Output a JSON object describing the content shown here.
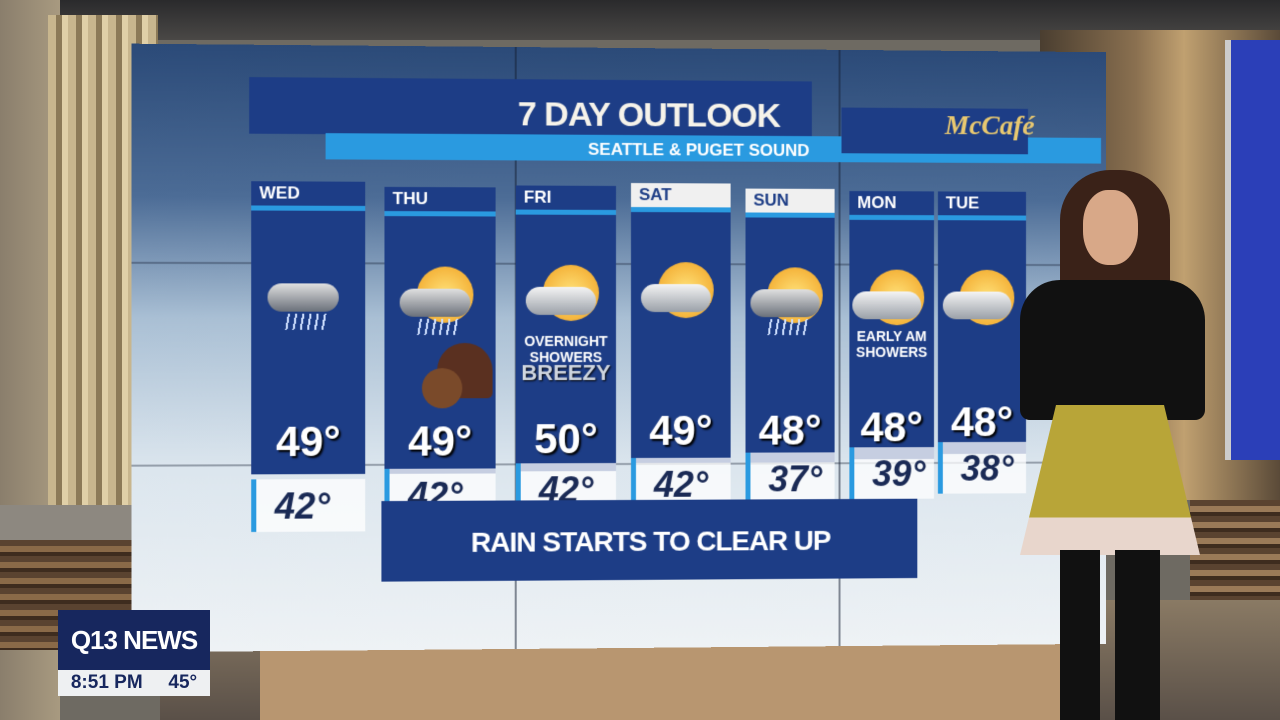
{
  "graphic": {
    "title": "7 DAY OUTLOOK",
    "subtitle": "SEATTLE & PUGET SOUND",
    "sponsor": "McCafé",
    "banner": "RAIN STARTS TO CLEAR UP",
    "colors": {
      "navy": "#1d3d86",
      "accent": "#2a9ae0"
    }
  },
  "days": [
    {
      "day": "WED",
      "high": "49°",
      "low": "42°",
      "icon": "cloud-rain-icon",
      "note": ""
    },
    {
      "day": "THU",
      "high": "49°",
      "low": "42°",
      "icon": "sun-cloud-rain-icon",
      "note": ""
    },
    {
      "day": "FRI",
      "high": "50°",
      "low": "42°",
      "icon": "sun-cloud-icon",
      "note": "OVERNIGHT SHOWERS",
      "note2": "BREEZY"
    },
    {
      "day": "SAT",
      "high": "49°",
      "low": "42°",
      "icon": "sun-cloud-icon",
      "note": ""
    },
    {
      "day": "SUN",
      "high": "48°",
      "low": "37°",
      "icon": "sun-cloud-rain-icon",
      "note": ""
    },
    {
      "day": "MON",
      "high": "48°",
      "low": "39°",
      "icon": "sun-cloud-icon",
      "note": "EARLY AM SHOWERS"
    },
    {
      "day": "TUE",
      "high": "48°",
      "low": "38°",
      "icon": "sun-cloud-icon",
      "note": ""
    }
  ],
  "station": {
    "name": "Q13 NEWS",
    "time": "8:51 PM",
    "temp": "45°"
  }
}
